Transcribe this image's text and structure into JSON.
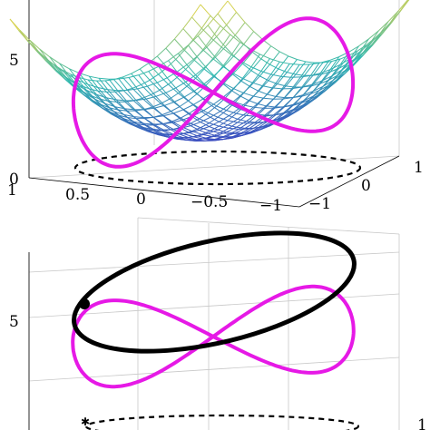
{
  "colors": {
    "surface_low": "#3b4cc0",
    "surface_mid": "#31b8b0",
    "surface_high": "#e7d44a",
    "figure_eight": "#e619e6",
    "ellipse": "#000000",
    "projection": "#000000",
    "grid": "#c8c8c8"
  },
  "chart_data": [
    {
      "type": "surface",
      "description_visible": "3D mesh surface (paraboloid) with a figure-eight curve and a dashed ellipse projected on the floor",
      "title": "",
      "z_ticks": [
        "0",
        "5"
      ],
      "x_ticks": [
        "1",
        "0.5",
        "0",
        "−0.5",
        "−1"
      ],
      "y_ticks": [
        "−1",
        "0",
        "1"
      ],
      "xlim": [
        -1,
        1
      ],
      "ylim": [
        -1,
        1
      ],
      "zlim": [
        0,
        8
      ],
      "surface": {
        "formula_shape": "paraboloid",
        "z_min": 1,
        "z_max": 9
      },
      "series": [
        {
          "kind": "figure-eight on surface",
          "color_key": "figure_eight"
        },
        {
          "kind": "dashed ellipse at z=0",
          "color_key": "projection"
        }
      ]
    },
    {
      "type": "line",
      "description_visible": "3D line plot: black ellipse, figure-eight curve and dashed ellipse on the floor",
      "title": "",
      "z_ticks": [
        "5"
      ],
      "x_ticks": [],
      "y_ticks": [
        "1"
      ],
      "series": [
        {
          "kind": "closed ellipse",
          "color_key": "ellipse"
        },
        {
          "kind": "figure-eight",
          "color_key": "figure_eight"
        },
        {
          "kind": "dashed ellipse at z=0",
          "color_key": "projection"
        }
      ],
      "markers": [
        {
          "kind": "intersection point"
        }
      ]
    }
  ]
}
